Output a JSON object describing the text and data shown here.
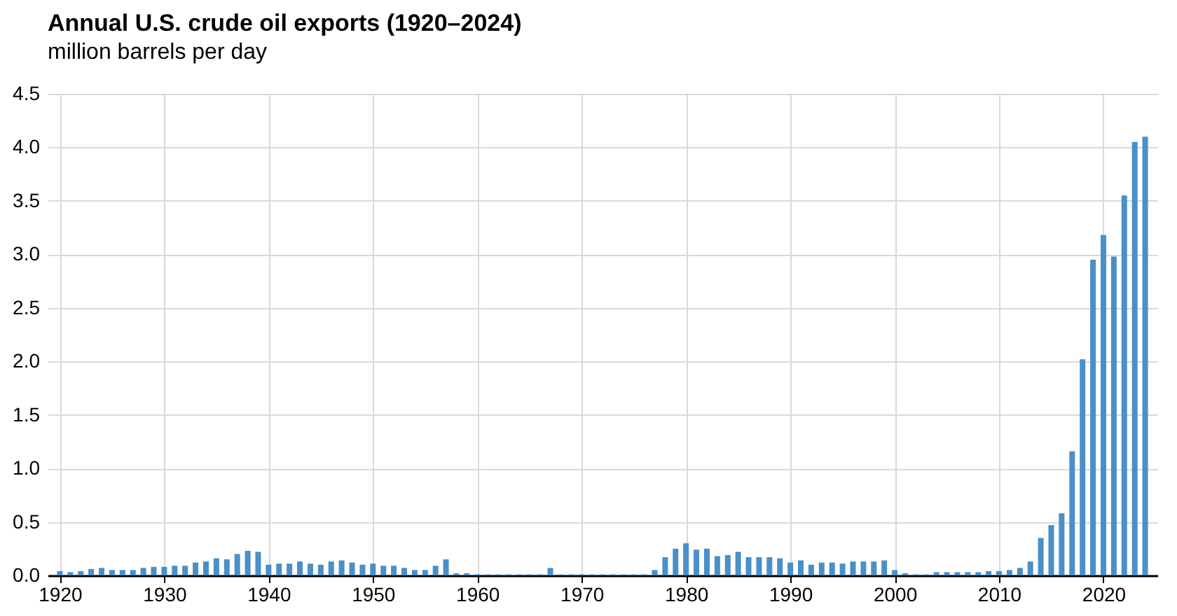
{
  "chart_data": {
    "type": "bar",
    "title": "Annual U.S. crude oil exports (1920–2024)",
    "subtitle": "million barrels per day",
    "x": [
      1920,
      1921,
      1922,
      1923,
      1924,
      1925,
      1926,
      1927,
      1928,
      1929,
      1930,
      1931,
      1932,
      1933,
      1934,
      1935,
      1936,
      1937,
      1938,
      1939,
      1940,
      1941,
      1942,
      1943,
      1944,
      1945,
      1946,
      1947,
      1948,
      1949,
      1950,
      1951,
      1952,
      1953,
      1954,
      1955,
      1956,
      1957,
      1958,
      1959,
      1960,
      1961,
      1962,
      1963,
      1964,
      1965,
      1966,
      1967,
      1968,
      1969,
      1970,
      1971,
      1972,
      1973,
      1974,
      1975,
      1976,
      1977,
      1978,
      1979,
      1980,
      1981,
      1982,
      1983,
      1984,
      1985,
      1986,
      1987,
      1988,
      1989,
      1990,
      1991,
      1992,
      1993,
      1994,
      1995,
      1996,
      1997,
      1998,
      1999,
      2000,
      2001,
      2002,
      2003,
      2004,
      2005,
      2006,
      2007,
      2008,
      2009,
      2010,
      2011,
      2012,
      2013,
      2014,
      2015,
      2016,
      2017,
      2018,
      2019,
      2020,
      2021,
      2022,
      2023,
      2024
    ],
    "values": [
      0.04,
      0.03,
      0.04,
      0.06,
      0.07,
      0.05,
      0.05,
      0.05,
      0.07,
      0.08,
      0.08,
      0.09,
      0.09,
      0.12,
      0.13,
      0.16,
      0.15,
      0.2,
      0.23,
      0.22,
      0.1,
      0.11,
      0.11,
      0.13,
      0.11,
      0.1,
      0.13,
      0.14,
      0.12,
      0.1,
      0.11,
      0.09,
      0.09,
      0.07,
      0.05,
      0.05,
      0.09,
      0.15,
      0.02,
      0.02,
      0.01,
      0.01,
      0.01,
      0.01,
      0.01,
      0.01,
      0.01,
      0.07,
      0.01,
      0.01,
      0.01,
      0.01,
      0.01,
      0.01,
      0.01,
      0.01,
      0.01,
      0.05,
      0.17,
      0.25,
      0.3,
      0.24,
      0.25,
      0.18,
      0.19,
      0.22,
      0.17,
      0.17,
      0.17,
      0.16,
      0.12,
      0.14,
      0.1,
      0.12,
      0.12,
      0.11,
      0.13,
      0.13,
      0.13,
      0.14,
      0.05,
      0.02,
      0.01,
      0.01,
      0.03,
      0.03,
      0.03,
      0.03,
      0.03,
      0.04,
      0.04,
      0.05,
      0.07,
      0.13,
      0.35,
      0.47,
      0.58,
      1.16,
      2.02,
      2.95,
      3.18,
      2.98,
      3.55,
      4.05,
      4.1
    ],
    "color": "#4a8fc7",
    "xlim": [
      1919.5,
      2024.5
    ],
    "xticks": [
      1920,
      1930,
      1940,
      1950,
      1960,
      1970,
      1980,
      1990,
      2000,
      2010,
      2020
    ],
    "ylim": [
      0,
      4.5
    ],
    "yticks": [
      {
        "value": 0,
        "label": "0.0"
      },
      {
        "value": 0.5,
        "label": "0.5"
      },
      {
        "value": 1,
        "label": "1.0"
      },
      {
        "value": 1.5,
        "label": "1.5"
      },
      {
        "value": 2,
        "label": "2.0"
      },
      {
        "value": 2.5,
        "label": "2.5"
      },
      {
        "value": 3,
        "label": "3.0"
      },
      {
        "value": 3.5,
        "label": "3.5"
      },
      {
        "value": 4,
        "label": "4.0"
      },
      {
        "value": 4.5,
        "label": "4.5"
      }
    ],
    "grid": true
  }
}
